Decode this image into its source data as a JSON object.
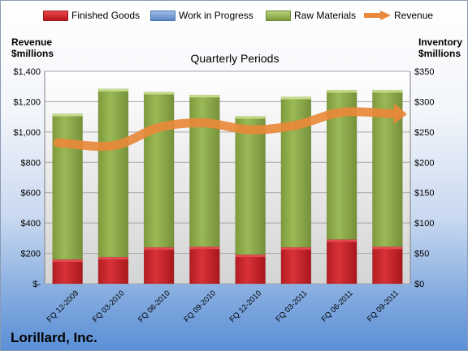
{
  "legend": {
    "finished_goods": "Finished Goods",
    "work_in_progress": "Work in Progress",
    "raw_materials": "Raw Materials",
    "revenue": "Revenue"
  },
  "left_axis_label_line1": "Revenue",
  "left_axis_label_line2": "$millions",
  "right_axis_label_line1": "Inventory",
  "right_axis_label_line2": "$millions",
  "plot_title": "Quarterly Periods",
  "company": "Lorillard, Inc.",
  "colors": {
    "finished_goods": "#c0262c",
    "work_in_progress": "#6a93cf",
    "raw_materials": "#8fab4a",
    "revenue": "#e8893a"
  },
  "chart_data": {
    "type": "bar",
    "stacked": true,
    "title": "Quarterly Periods",
    "categories": [
      "FQ 12-2009",
      "FQ 03-2010",
      "FQ 06-2010",
      "FQ 09-2010",
      "FQ 12-2010",
      "FQ 03-2011",
      "FQ 06-2011",
      "FQ 09-2011"
    ],
    "left_axis": {
      "label": "Revenue $millions",
      "ylim": [
        0,
        1400
      ],
      "ticks": [
        "$-",
        "$200",
        "$400",
        "$600",
        "$800",
        "$1,000",
        "$1,200",
        "$1,400"
      ]
    },
    "right_axis": {
      "label": "Inventory $millions",
      "ylim": [
        0,
        350
      ],
      "ticks": [
        "$0",
        "$50",
        "$100",
        "$150",
        "$200",
        "$250",
        "$300",
        "$350"
      ]
    },
    "series": [
      {
        "name": "Finished Goods",
        "axis": "right",
        "values": [
          40,
          44,
          60,
          61,
          48,
          60,
          73,
          61
        ]
      },
      {
        "name": "Work in Progress",
        "axis": "right",
        "values": [
          0,
          0,
          0,
          0,
          0,
          0,
          0,
          0
        ]
      },
      {
        "name": "Raw Materials",
        "axis": "right",
        "values": [
          240,
          277,
          256,
          250,
          228,
          248,
          246,
          258
        ]
      },
      {
        "name": "Revenue",
        "axis": "left",
        "type": "line",
        "values": [
          930,
          910,
          1030,
          1060,
          1015,
          1045,
          1130,
          1120
        ]
      }
    ],
    "grid": true,
    "legend_position": "top"
  }
}
